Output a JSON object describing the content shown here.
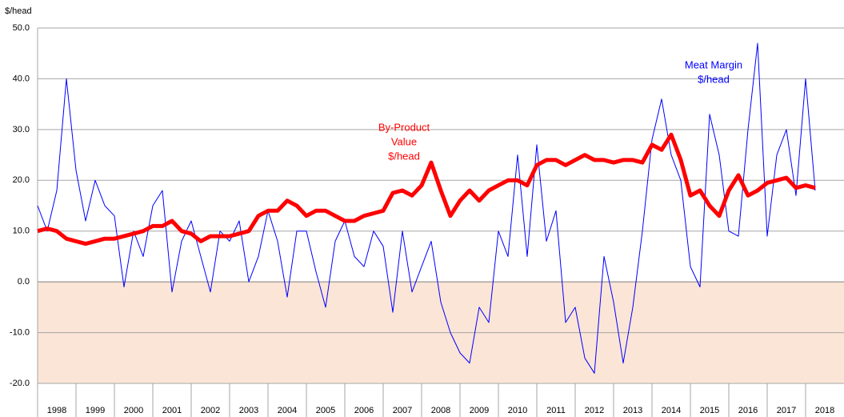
{
  "chart_data": {
    "type": "line",
    "ylabel": "$/head",
    "x": [
      1998,
      1998.25,
      1998.5,
      1998.75,
      1999,
      1999.25,
      1999.5,
      1999.75,
      2000,
      2000.25,
      2000.5,
      2000.75,
      2001,
      2001.25,
      2001.5,
      2001.75,
      2002,
      2002.25,
      2002.5,
      2002.75,
      2003,
      2003.25,
      2003.5,
      2003.75,
      2004,
      2004.25,
      2004.5,
      2004.75,
      2005,
      2005.25,
      2005.5,
      2005.75,
      2006,
      2006.25,
      2006.5,
      2006.75,
      2007,
      2007.25,
      2007.5,
      2007.75,
      2008,
      2008.25,
      2008.5,
      2008.75,
      2009,
      2009.25,
      2009.5,
      2009.75,
      2010,
      2010.25,
      2010.5,
      2010.75,
      2011,
      2011.25,
      2011.5,
      2011.75,
      2012,
      2012.25,
      2012.5,
      2012.75,
      2013,
      2013.25,
      2013.5,
      2013.75,
      2014,
      2014.25,
      2014.5,
      2014.75,
      2015,
      2015.25,
      2015.5,
      2015.75,
      2016,
      2016.25,
      2016.5,
      2016.75,
      2017,
      2017.25,
      2017.5,
      2017.75,
      2018,
      2018.25
    ],
    "series": [
      {
        "name": [
          "Meat Margin",
          "$/head"
        ],
        "color": "#0000ff",
        "width": 1,
        "values": [
          15,
          10,
          18,
          40,
          22,
          12,
          20,
          15,
          13,
          -1,
          10,
          5,
          15,
          18,
          -2,
          8,
          12,
          5,
          -2,
          10,
          8,
          12,
          0,
          5,
          14,
          8,
          -3,
          10,
          10,
          2,
          -5,
          8,
          12,
          5,
          3,
          10,
          7,
          -6,
          10,
          -2,
          3,
          8,
          -4,
          -10,
          -14,
          -16,
          -5,
          -8,
          10,
          5,
          25,
          5,
          27,
          8,
          14,
          -8,
          -5,
          -15,
          -18,
          5,
          -4,
          -16,
          -5,
          10,
          28,
          36,
          25,
          20,
          3,
          -1,
          33,
          25,
          10,
          9,
          30,
          47,
          9,
          25,
          30,
          17,
          40,
          18
        ]
      },
      {
        "name": [
          "By-Product",
          "Value",
          "$/head"
        ],
        "color": "#ff0000",
        "width": 5,
        "values": [
          10,
          10.5,
          10,
          8.5,
          8,
          7.5,
          8,
          8.5,
          8.5,
          9,
          9.5,
          10,
          11,
          11,
          12,
          10,
          9.5,
          8,
          9,
          9,
          9,
          9.5,
          10,
          13,
          14,
          14,
          16,
          15,
          13,
          14,
          14,
          13,
          12,
          12,
          13,
          13.5,
          14,
          17.5,
          18,
          17,
          19,
          23.5,
          18,
          13,
          16,
          18,
          16,
          18,
          19,
          20,
          20,
          19,
          23,
          24,
          24,
          23,
          24,
          25,
          24,
          24,
          23.5,
          24,
          24,
          23.5,
          27,
          26,
          29,
          24,
          17,
          18,
          15,
          13,
          18,
          21,
          17,
          18,
          19.5,
          20,
          20.5,
          18.5,
          19,
          18.5
        ]
      }
    ],
    "xlim": [
      1998,
      2019
    ],
    "xticks": [
      1998,
      1999,
      2000,
      2001,
      2002,
      2003,
      2004,
      2005,
      2006,
      2007,
      2008,
      2009,
      2010,
      2011,
      2012,
      2013,
      2014,
      2015,
      2016,
      2017,
      2018
    ],
    "ylim": [
      -20,
      50
    ],
    "yticks": [
      {
        "value": -20,
        "label": "-20.0"
      },
      {
        "value": -10,
        "label": "-10.0"
      },
      {
        "value": 0,
        "label": "0.0"
      },
      {
        "value": 10,
        "label": "10.0"
      },
      {
        "value": 20,
        "label": "20.0"
      },
      {
        "value": 30,
        "label": "30.0"
      },
      {
        "value": 40,
        "label": "40.0"
      },
      {
        "value": 50,
        "label": "50.0"
      }
    ],
    "grid": true,
    "negative_fill": "#fbe5d6"
  }
}
